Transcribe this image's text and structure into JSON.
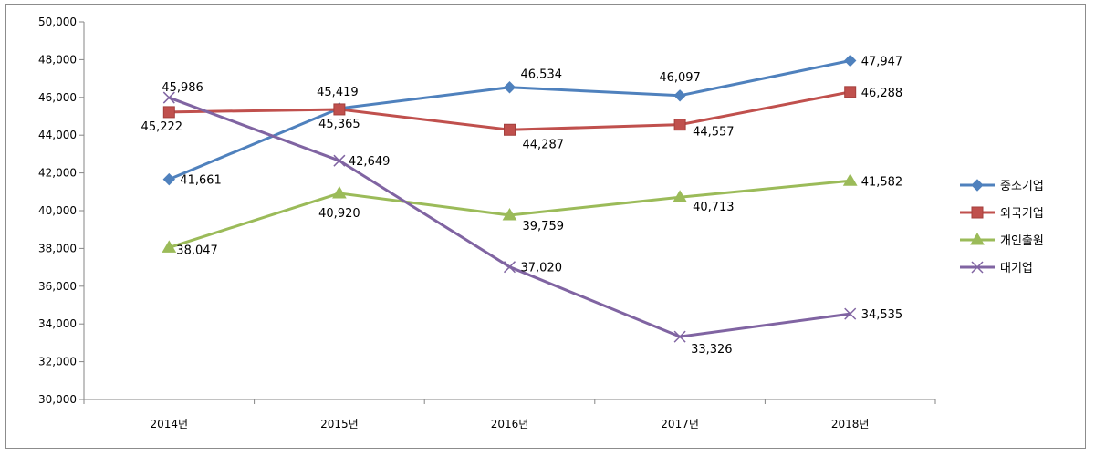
{
  "chart_data": {
    "type": "line",
    "title": "",
    "xlabel": "",
    "ylabel": "",
    "categories": [
      "2014년",
      "2015년",
      "2016년",
      "2017년",
      "2018년"
    ],
    "ylim": [
      30000,
      50000
    ],
    "y_ticks": [
      "30,000",
      "32,000",
      "34,000",
      "36,000",
      "38,000",
      "40,000",
      "42,000",
      "44,000",
      "46,000",
      "48,000",
      "50,000"
    ],
    "grid": false,
    "legend_position": "right",
    "series": [
      {
        "name": "중소기업",
        "values": [
          41661,
          45419,
          46534,
          46097,
          47947
        ],
        "labels": [
          "41,661",
          "45,419",
          "46,534",
          "46,097",
          "47,947"
        ],
        "color": "#4f81bd",
        "marker": "diamond"
      },
      {
        "name": "외국기업",
        "values": [
          45222,
          45365,
          44287,
          44557,
          46288
        ],
        "labels": [
          "45,222",
          "45,365",
          "44,287",
          "44,557",
          "46,288"
        ],
        "color": "#c0504d",
        "marker": "square"
      },
      {
        "name": "개인출원",
        "values": [
          38047,
          40920,
          39759,
          40713,
          41582
        ],
        "labels": [
          "38,047",
          "40,920",
          "39,759",
          "40,713",
          "41,582"
        ],
        "color": "#9bbb59",
        "marker": "triangle"
      },
      {
        "name": "대기업",
        "values": [
          45986,
          42649,
          37020,
          33326,
          34535
        ],
        "labels": [
          "45,986",
          "42,649",
          "37,020",
          "33,326",
          "34,535"
        ],
        "color": "#8064a2",
        "marker": "x"
      }
    ]
  }
}
